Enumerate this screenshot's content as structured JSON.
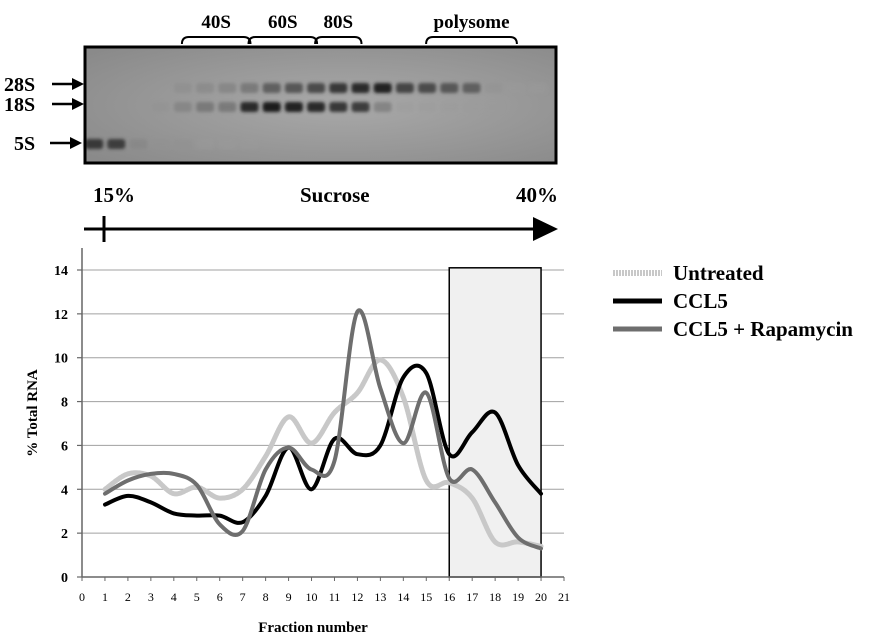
{
  "gel": {
    "fraction_groups": [
      {
        "label": "40S",
        "from_lane": 5,
        "to_lane": 8
      },
      {
        "label": "60S",
        "from_lane": 8,
        "to_lane": 11
      },
      {
        "label": "80S",
        "from_lane": 11,
        "to_lane": 13
      },
      {
        "label": "polysome",
        "from_lane": 16,
        "to_lane": 20
      }
    ],
    "band_labels": [
      "28S",
      "18S",
      "5S"
    ],
    "band_intensity": {
      "28S": [
        0,
        0,
        0,
        0,
        0.15,
        0.2,
        0.25,
        0.35,
        0.5,
        0.55,
        0.6,
        0.75,
        0.85,
        0.9,
        0.65,
        0.6,
        0.55,
        0.5,
        0.1,
        0.05,
        0.05
      ],
      "18S": [
        0,
        0,
        0,
        0.1,
        0.25,
        0.35,
        0.35,
        0.85,
        0.95,
        0.9,
        0.85,
        0.75,
        0.7,
        0.3,
        0.05,
        0.05,
        0.05,
        0.05,
        0.05,
        0,
        0
      ],
      "5S": [
        0.75,
        0.7,
        0.2,
        0.1,
        0.1,
        0.05,
        0.05,
        0.05,
        0,
        0,
        0,
        0,
        0,
        0,
        0,
        0,
        0,
        0,
        0,
        0,
        0
      ]
    }
  },
  "gradient": {
    "start_label": "15%",
    "middle_label": "Sucrose",
    "end_label": "40%"
  },
  "chart_data": {
    "type": "line",
    "xlabel": "Fraction number",
    "ylabel": "% Total RNA",
    "xlim": [
      0,
      21
    ],
    "ylim": [
      0,
      14
    ],
    "x_ticks": [
      0,
      1,
      2,
      3,
      4,
      5,
      6,
      7,
      8,
      9,
      10,
      11,
      12,
      13,
      14,
      15,
      16,
      17,
      18,
      19,
      20,
      21
    ],
    "y_ticks": [
      0,
      2,
      4,
      6,
      8,
      10,
      12,
      14
    ],
    "grid": "horizontal",
    "legend_position": "right",
    "highlight_region": {
      "x": [
        16,
        20
      ],
      "y": [
        0,
        14.1
      ],
      "color": "#f0f0f0"
    },
    "x": [
      1,
      2,
      3,
      4,
      5,
      6,
      7,
      8,
      9,
      10,
      11,
      12,
      13,
      14,
      15,
      16,
      17,
      18,
      19,
      20
    ],
    "series": [
      {
        "name": "Untreated",
        "color": "#c8c8c8",
        "width": 5,
        "values": [
          4.0,
          4.7,
          4.6,
          3.8,
          4.1,
          3.6,
          4.0,
          5.5,
          7.3,
          6.1,
          7.5,
          8.4,
          9.9,
          8.2,
          4.4,
          4.3,
          3.6,
          1.6,
          1.6,
          1.4
        ]
      },
      {
        "name": "CCL5",
        "color": "#000000",
        "width": 4,
        "values": [
          3.3,
          3.7,
          3.4,
          2.9,
          2.8,
          2.8,
          2.5,
          3.7,
          5.9,
          4.0,
          6.3,
          5.6,
          6.0,
          9.1,
          9.3,
          5.6,
          6.6,
          7.5,
          5.1,
          3.8
        ]
      },
      {
        "name": "CCL5 + Rapamycin",
        "color": "#6e6e6e",
        "width": 4,
        "values": [
          3.8,
          4.4,
          4.7,
          4.7,
          4.2,
          2.4,
          2.1,
          4.9,
          5.9,
          4.9,
          5.3,
          12.1,
          8.6,
          6.1,
          8.4,
          4.5,
          4.9,
          3.4,
          1.8,
          1.3
        ]
      }
    ]
  }
}
